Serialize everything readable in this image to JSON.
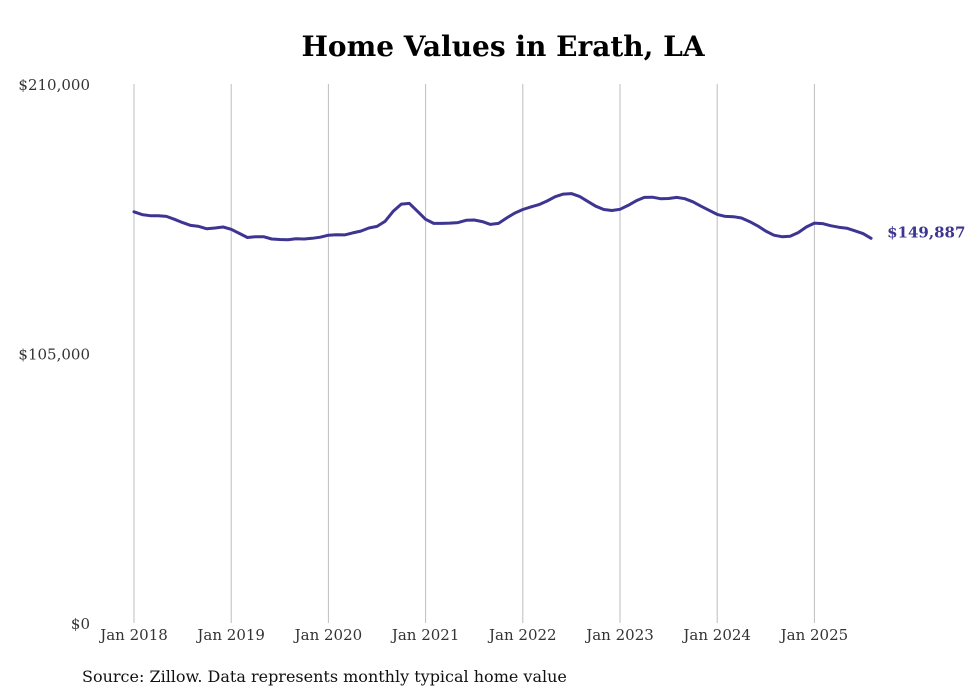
{
  "chart_data": {
    "type": "line",
    "title": "Home Values in Erath, LA",
    "xlabel": "",
    "ylabel": "",
    "ylim": [
      0,
      210000
    ],
    "y_ticks": [
      {
        "value": 0,
        "label": "$0"
      },
      {
        "value": 105000,
        "label": "$105,000"
      },
      {
        "value": 210000,
        "label": "$210,000"
      }
    ],
    "x_ticks": [
      "Jan 2018",
      "Jan 2019",
      "Jan 2020",
      "Jan 2021",
      "Jan 2022",
      "Jan 2023",
      "Jan 2024",
      "Jan 2025"
    ],
    "grid": "vertical",
    "line_color": "#3d3591",
    "end_label": "$149,887",
    "series": [
      {
        "x": [
          "2018-01",
          "2018-02",
          "2018-03",
          "2018-04",
          "2018-05",
          "2018-06",
          "2018-07",
          "2018-08",
          "2018-09",
          "2018-10",
          "2018-11",
          "2018-12",
          "2019-01",
          "2019-02",
          "2019-03",
          "2019-04",
          "2019-05",
          "2019-06",
          "2019-07",
          "2019-08",
          "2019-09",
          "2019-10",
          "2019-11",
          "2019-12",
          "2020-01",
          "2020-02",
          "2020-03",
          "2020-04",
          "2020-05",
          "2020-06",
          "2020-07",
          "2020-08",
          "2020-09",
          "2020-10",
          "2020-11",
          "2020-12",
          "2021-01",
          "2021-02",
          "2021-03",
          "2021-04",
          "2021-05",
          "2021-06",
          "2021-07",
          "2021-08",
          "2021-09",
          "2021-10",
          "2021-11",
          "2021-12",
          "2022-01",
          "2022-02",
          "2022-03",
          "2022-04",
          "2022-05",
          "2022-06",
          "2022-07",
          "2022-08",
          "2022-09",
          "2022-10",
          "2022-11",
          "2022-12",
          "2023-01",
          "2023-02",
          "2023-03",
          "2023-04",
          "2023-05",
          "2023-06",
          "2023-07",
          "2023-08",
          "2023-09",
          "2023-10",
          "2023-11",
          "2023-12",
          "2024-01",
          "2024-02",
          "2024-03",
          "2024-04",
          "2024-05",
          "2024-06",
          "2024-07",
          "2024-08",
          "2024-09",
          "2024-10",
          "2024-11",
          "2024-12",
          "2025-01",
          "2025-02",
          "2025-03",
          "2025-04",
          "2025-05",
          "2025-06",
          "2025-07",
          "2025-08"
        ],
        "values": [
          160200,
          159100,
          158700,
          158700,
          158400,
          157300,
          156000,
          154900,
          154500,
          153600,
          153900,
          154300,
          153400,
          151800,
          150200,
          150500,
          150500,
          149600,
          149400,
          149300,
          149700,
          149600,
          149900,
          150300,
          151100,
          151300,
          151200,
          152000,
          152700,
          153900,
          154500,
          156500,
          160400,
          163200,
          163500,
          160400,
          157300,
          155700,
          155700,
          155800,
          156000,
          156900,
          157000,
          156400,
          155300,
          155700,
          157800,
          159700,
          161100,
          162100,
          163000,
          164400,
          166100,
          167100,
          167300,
          166200,
          164300,
          162400,
          161100,
          160700,
          161200,
          162700,
          164500,
          165800,
          165900,
          165300,
          165400,
          165800,
          165300,
          164100,
          162400,
          160800,
          159200,
          158400,
          158300,
          157800,
          156400,
          154700,
          152700,
          151100,
          150500,
          150700,
          152100,
          154300,
          155800,
          155600,
          154800,
          154200,
          153800,
          152800,
          151700,
          149887
        ]
      }
    ],
    "colors": {
      "line": "#3d3591",
      "grid": "#bdbdbd",
      "text": "#333333"
    }
  },
  "footer": {
    "source": "Source: Zillow. Data represents monthly typical home value"
  }
}
